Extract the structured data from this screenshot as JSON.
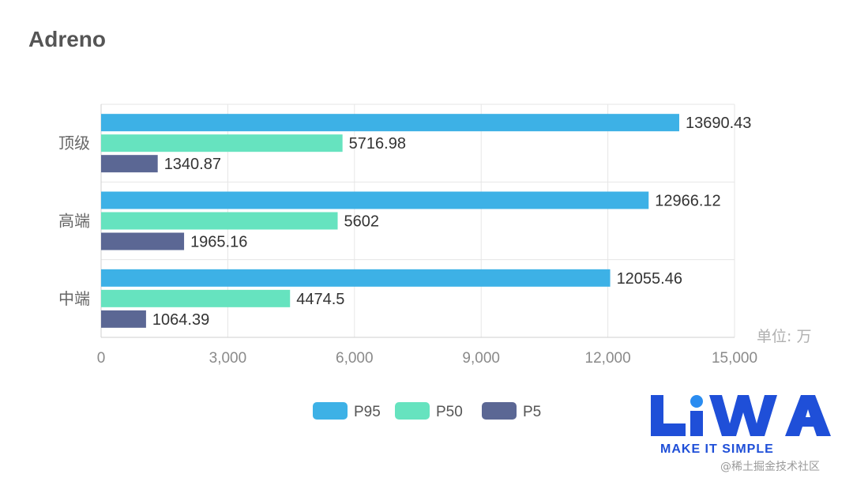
{
  "chart_data": {
    "type": "bar",
    "orientation": "horizontal",
    "title": "Adreno",
    "categories": [
      "顶级",
      "高端",
      "中端"
    ],
    "series": [
      {
        "name": "P95",
        "color": "#3db1e6",
        "values": [
          13690.43,
          12966.12,
          12055.46
        ],
        "labels": [
          "13690.43",
          "12966.12",
          "12055.46"
        ]
      },
      {
        "name": "P50",
        "color": "#66e3bf",
        "values": [
          5716.98,
          5602,
          4474.5
        ],
        "labels": [
          "5716.98",
          "5602",
          "4474.5"
        ]
      },
      {
        "name": "P5",
        "color": "#5b6794",
        "values": [
          1340.87,
          1965.16,
          1064.39
        ],
        "labels": [
          "1340.87",
          "1965.16",
          "1064.39"
        ]
      }
    ],
    "xlim": [
      0,
      15000
    ],
    "xticks": [
      0,
      3000,
      6000,
      9000,
      12000,
      15000
    ],
    "xtick_labels": [
      "0",
      "3,000",
      "6,000",
      "9,000",
      "12,000",
      "15,000"
    ],
    "unit_label": "单位: 万",
    "grid": true,
    "legend_position": "bottom"
  },
  "logo": {
    "text": "LiWA",
    "tagline": "MAKE IT SIMPLE",
    "color": "#1f4fd8",
    "accent": "#2a8cf0"
  },
  "watermark": "@稀土掘金技术社区"
}
